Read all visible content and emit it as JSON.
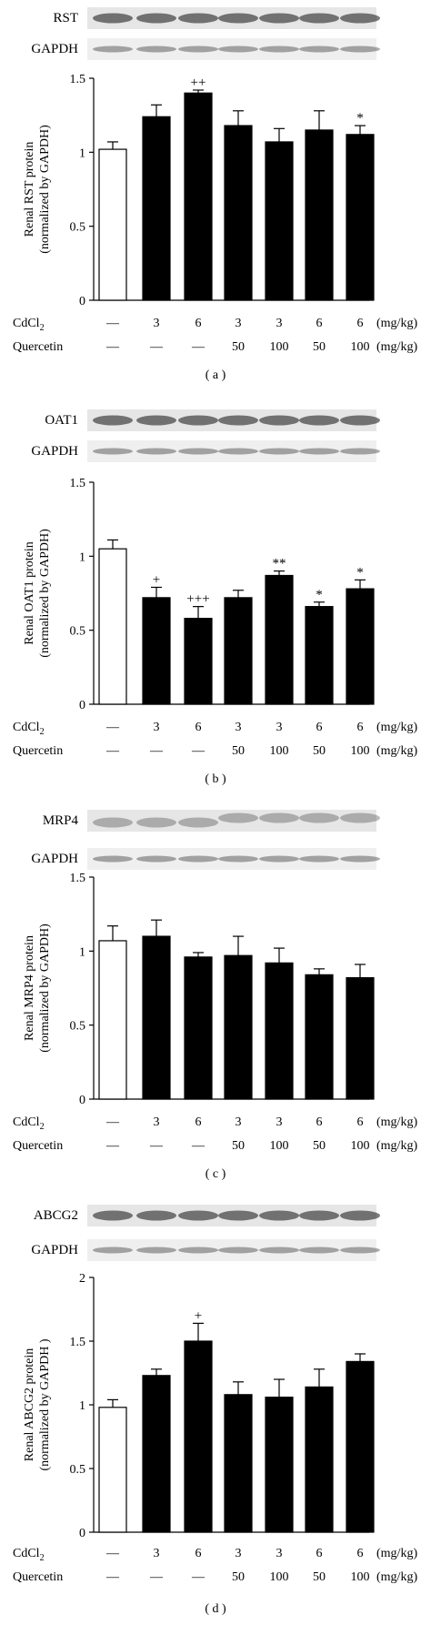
{
  "chart_data": [
    {
      "type": "bar",
      "panel_label": "( a )",
      "blot_labels": [
        "RST",
        "GAPDH"
      ],
      "ylabel": "Renal RST protein",
      "ylabel2": "(normalized by GAPDH)",
      "ylim": [
        0,
        1.5
      ],
      "yticks": [
        "0",
        "0.5",
        "1",
        "1.5"
      ],
      "ytick_values": [
        0,
        0.5,
        1,
        1.5
      ],
      "row1_label": "CdCl₂",
      "row1_values": [
        "—",
        "3",
        "6",
        "3",
        "3",
        "6",
        "6"
      ],
      "row1_unit": "(mg/kg)",
      "row2_label": "Quercetin",
      "row2_values": [
        "—",
        "—",
        "—",
        "50",
        "100",
        "50",
        "100"
      ],
      "row2_unit": "(mg/kg)",
      "values": [
        1.02,
        1.24,
        1.4,
        1.18,
        1.07,
        1.15,
        1.12
      ],
      "errors": [
        0.05,
        0.08,
        0.02,
        0.1,
        0.09,
        0.13,
        0.06
      ],
      "annotations": [
        "",
        "",
        "++",
        "",
        "",
        "",
        "*"
      ],
      "fill": [
        "#ffffff",
        "#000000",
        "#000000",
        "#000000",
        "#000000",
        "#000000",
        "#000000"
      ]
    },
    {
      "type": "bar",
      "panel_label": "( b )",
      "blot_labels": [
        "OAT1",
        "GAPDH"
      ],
      "ylabel": "Renal OAT1 protein",
      "ylabel2": "(normalized by GAPDH)",
      "ylim": [
        0,
        1.5
      ],
      "yticks": [
        "0",
        "0.5",
        "1",
        "1.5"
      ],
      "ytick_values": [
        0,
        0.5,
        1,
        1.5
      ],
      "row1_label": "CdCl₂",
      "row1_values": [
        "—",
        "3",
        "6",
        "3",
        "3",
        "6",
        "6"
      ],
      "row1_unit": "(mg/kg)",
      "row2_label": "Quercetin",
      "row2_values": [
        "—",
        "—",
        "—",
        "50",
        "100",
        "50",
        "100"
      ],
      "row2_unit": "(mg/kg)",
      "values": [
        1.05,
        0.72,
        0.58,
        0.72,
        0.87,
        0.66,
        0.78
      ],
      "errors": [
        0.06,
        0.07,
        0.08,
        0.05,
        0.03,
        0.03,
        0.06
      ],
      "annotations": [
        "",
        "+",
        "+++",
        "",
        "**",
        "*",
        "*"
      ],
      "fill": [
        "#ffffff",
        "#000000",
        "#000000",
        "#000000",
        "#000000",
        "#000000",
        "#000000"
      ]
    },
    {
      "type": "bar",
      "panel_label": "( c )",
      "blot_labels": [
        "MRP4",
        "GAPDH"
      ],
      "ylabel": "Renal MRP4 protein",
      "ylabel2": "(normalized by GAPDH)",
      "ylim": [
        0,
        1.5
      ],
      "yticks": [
        "0",
        "0.5",
        "1",
        "1.5"
      ],
      "ytick_values": [
        0,
        0.5,
        1,
        1.5
      ],
      "row1_label": "CdCl₂",
      "row1_values": [
        "—",
        "3",
        "6",
        "3",
        "3",
        "6",
        "6"
      ],
      "row1_unit": "(mg/kg)",
      "row2_label": "Quercetin",
      "row2_values": [
        "—",
        "—",
        "—",
        "50",
        "100",
        "50",
        "100"
      ],
      "row2_unit": "(mg/kg)",
      "values": [
        1.07,
        1.1,
        0.96,
        0.97,
        0.92,
        0.84,
        0.82
      ],
      "errors": [
        0.1,
        0.11,
        0.03,
        0.13,
        0.1,
        0.04,
        0.09
      ],
      "annotations": [
        "",
        "",
        "",
        "",
        "",
        "",
        ""
      ],
      "fill": [
        "#ffffff",
        "#000000",
        "#000000",
        "#000000",
        "#000000",
        "#000000",
        "#000000"
      ]
    },
    {
      "type": "bar",
      "panel_label": "( d )",
      "blot_labels": [
        "ABCG2",
        "GAPDH"
      ],
      "ylabel": "Renal ABCG2 protein",
      "ylabel2": "(normalized by GAPDH )",
      "ylim": [
        0,
        2
      ],
      "yticks": [
        "0",
        "0.5",
        "1",
        "1.5",
        "2"
      ],
      "ytick_values": [
        0,
        0.5,
        1,
        1.5,
        2
      ],
      "row1_label": "CdCl₂",
      "row1_values": [
        "—",
        "3",
        "6",
        "3",
        "3",
        "6",
        "6"
      ],
      "row1_unit": "(mg/kg)",
      "row2_label": "Quercetin",
      "row2_values": [
        "—",
        "—",
        "—",
        "50",
        "100",
        "50",
        "100"
      ],
      "row2_unit": "(mg/kg)",
      "values": [
        0.98,
        1.23,
        1.5,
        1.08,
        1.06,
        1.14,
        1.34
      ],
      "errors": [
        0.06,
        0.05,
        0.14,
        0.1,
        0.14,
        0.14,
        0.06
      ],
      "annotations": [
        "",
        "",
        "+",
        "",
        "",
        "",
        ""
      ],
      "fill": [
        "#ffffff",
        "#000000",
        "#000000",
        "#000000",
        "#000000",
        "#000000",
        "#000000"
      ]
    }
  ]
}
